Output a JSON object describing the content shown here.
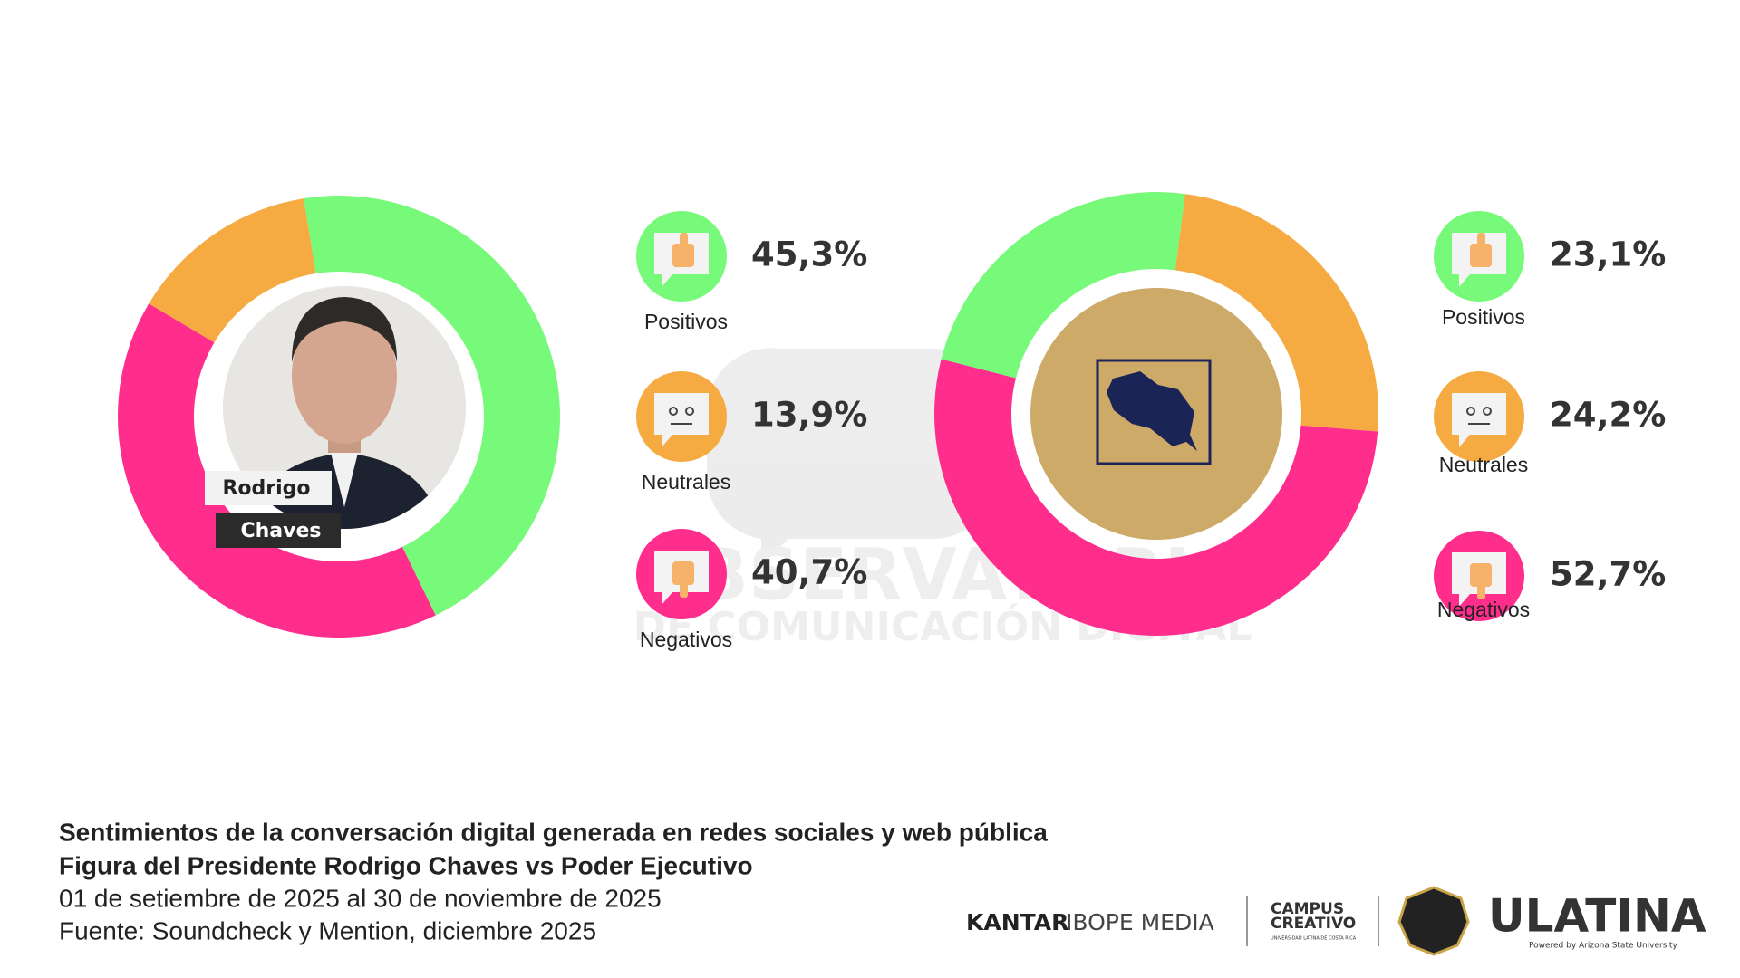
{
  "chart_data": [
    {
      "type": "pie",
      "categories": [
        "Positivos",
        "Neutrales",
        "Negativos"
      ],
      "values": [
        45.3,
        13.9,
        40.7
      ],
      "value_labels": [
        "45,3%",
        "13,9%",
        "40,7%"
      ],
      "colors": [
        "#77fa7a",
        "#f5ab42",
        "#ff2d8c"
      ],
      "donut": true
    },
    {
      "type": "pie",
      "categories": [
        "Positivos",
        "Neutrales",
        "Negativos"
      ],
      "values": [
        23.1,
        24.2,
        52.7
      ],
      "value_labels": [
        "23,1%",
        "24,2%",
        "52,7%"
      ],
      "colors": [
        "#77fa7a",
        "#f5ab42",
        "#ff2d8c"
      ],
      "donut": true
    }
  ],
  "name_tag": [
    "Rodrigo",
    "Chaves"
  ],
  "watermark": [
    "OBSERVATORIO",
    "DE COMUNICACIÓN DIGITAL"
  ],
  "footer": {
    "title": "Sentimientos de la conversación digital generada en redes sociales y web pública",
    "subtitle": "Figura del Presidente Rodrigo Chaves vs Poder Ejecutivo",
    "period": "01 de setiembre de 2025 al 30 de noviembre de 2025",
    "source": "Fuente: Soundcheck y Mention, diciembre 2025"
  },
  "logos": {
    "kantar": "KANTAR",
    "ibope": "IBOPE MEDIA",
    "campus": [
      "CAMPUS",
      "CREATIVO"
    ],
    "campus_sub": "UNIVERSIDAD LATINA DE COSTA RICA",
    "ulatina": "ULATINA",
    "ulatina_sub": "Powered by Arizona State University"
  }
}
